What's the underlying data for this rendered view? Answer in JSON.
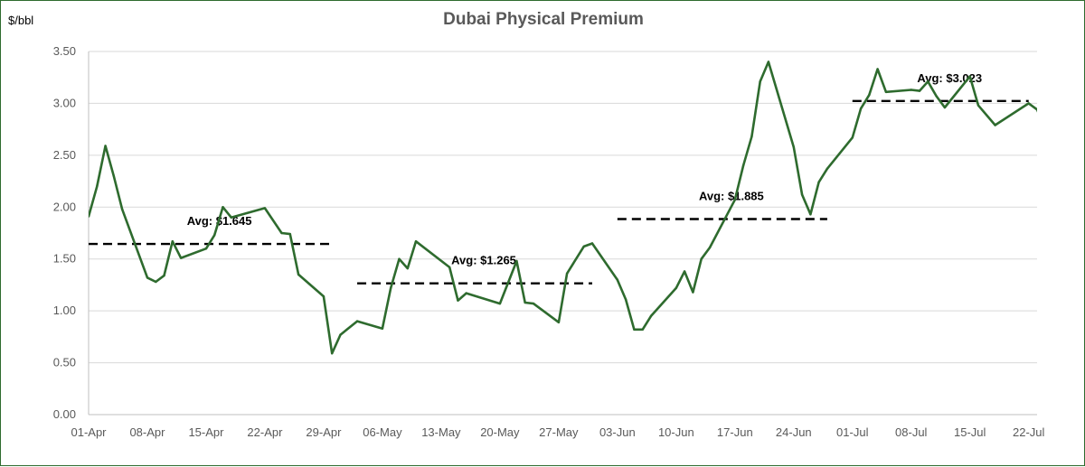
{
  "chart_data": {
    "type": "line",
    "title": "Dubai Physical Premium",
    "y_unit": "$/bbl",
    "ylim": [
      0,
      3.5
    ],
    "y_ticks": [
      "0.00",
      "0.50",
      "1.00",
      "1.50",
      "2.00",
      "2.50",
      "3.00",
      "3.50"
    ],
    "x_range": [
      "2024-04-01",
      "2024-07-23"
    ],
    "x_ticks": [
      {
        "date": "2024-04-01",
        "label": "01-Apr"
      },
      {
        "date": "2024-04-08",
        "label": "08-Apr"
      },
      {
        "date": "2024-04-15",
        "label": "15-Apr"
      },
      {
        "date": "2024-04-22",
        "label": "22-Apr"
      },
      {
        "date": "2024-04-29",
        "label": "29-Apr"
      },
      {
        "date": "2024-05-06",
        "label": "06-May"
      },
      {
        "date": "2024-05-13",
        "label": "13-May"
      },
      {
        "date": "2024-05-20",
        "label": "20-May"
      },
      {
        "date": "2024-05-27",
        "label": "27-May"
      },
      {
        "date": "2024-06-03",
        "label": "03-Jun"
      },
      {
        "date": "2024-06-10",
        "label": "10-Jun"
      },
      {
        "date": "2024-06-17",
        "label": "17-Jun"
      },
      {
        "date": "2024-06-24",
        "label": "24-Jun"
      },
      {
        "date": "2024-07-01",
        "label": "01-Jul"
      },
      {
        "date": "2024-07-08",
        "label": "08-Jul"
      },
      {
        "date": "2024-07-15",
        "label": "15-Jul"
      },
      {
        "date": "2024-07-22",
        "label": "22-Jul"
      }
    ],
    "series": [
      {
        "color": "#2e6b2e",
        "points": [
          [
            "2024-04-01",
            1.91
          ],
          [
            "2024-04-02",
            2.2
          ],
          [
            "2024-04-03",
            2.59
          ],
          [
            "2024-04-04",
            2.3
          ],
          [
            "2024-04-05",
            1.98
          ],
          [
            "2024-04-08",
            1.32
          ],
          [
            "2024-04-09",
            1.28
          ],
          [
            "2024-04-10",
            1.34
          ],
          [
            "2024-04-11",
            1.67
          ],
          [
            "2024-04-12",
            1.51
          ],
          [
            "2024-04-15",
            1.6
          ],
          [
            "2024-04-16",
            1.73
          ],
          [
            "2024-04-17",
            2.0
          ],
          [
            "2024-04-18",
            1.9
          ],
          [
            "2024-04-22",
            1.99
          ],
          [
            "2024-04-24",
            1.75
          ],
          [
            "2024-04-25",
            1.74
          ],
          [
            "2024-04-26",
            1.35
          ],
          [
            "2024-04-29",
            1.14
          ],
          [
            "2024-04-30",
            0.59
          ],
          [
            "2024-05-01",
            0.77
          ],
          [
            "2024-05-03",
            0.9
          ],
          [
            "2024-05-06",
            0.83
          ],
          [
            "2024-05-07",
            1.22
          ],
          [
            "2024-05-08",
            1.5
          ],
          [
            "2024-05-09",
            1.41
          ],
          [
            "2024-05-10",
            1.67
          ],
          [
            "2024-05-14",
            1.42
          ],
          [
            "2024-05-15",
            1.1
          ],
          [
            "2024-05-16",
            1.17
          ],
          [
            "2024-05-20",
            1.07
          ],
          [
            "2024-05-22",
            1.48
          ],
          [
            "2024-05-23",
            1.08
          ],
          [
            "2024-05-24",
            1.07
          ],
          [
            "2024-05-27",
            0.89
          ],
          [
            "2024-05-28",
            1.36
          ],
          [
            "2024-05-30",
            1.62
          ],
          [
            "2024-05-31",
            1.65
          ],
          [
            "2024-06-03",
            1.3
          ],
          [
            "2024-06-04",
            1.11
          ],
          [
            "2024-06-05",
            0.82
          ],
          [
            "2024-06-06",
            0.82
          ],
          [
            "2024-06-07",
            0.95
          ],
          [
            "2024-06-10",
            1.22
          ],
          [
            "2024-06-11",
            1.38
          ],
          [
            "2024-06-12",
            1.18
          ],
          [
            "2024-06-13",
            1.5
          ],
          [
            "2024-06-14",
            1.61
          ],
          [
            "2024-06-17",
            2.07
          ],
          [
            "2024-06-18",
            2.4
          ],
          [
            "2024-06-19",
            2.68
          ],
          [
            "2024-06-20",
            3.21
          ],
          [
            "2024-06-21",
            3.4
          ],
          [
            "2024-06-24",
            2.58
          ],
          [
            "2024-06-25",
            2.12
          ],
          [
            "2024-06-26",
            1.93
          ],
          [
            "2024-06-27",
            2.24
          ],
          [
            "2024-06-28",
            2.37
          ],
          [
            "2024-07-01",
            2.67
          ],
          [
            "2024-07-02",
            2.95
          ],
          [
            "2024-07-03",
            3.08
          ],
          [
            "2024-07-04",
            3.33
          ],
          [
            "2024-07-05",
            3.11
          ],
          [
            "2024-07-08",
            3.13
          ],
          [
            "2024-07-09",
            3.12
          ],
          [
            "2024-07-10",
            3.21
          ],
          [
            "2024-07-11",
            3.07
          ],
          [
            "2024-07-12",
            2.96
          ],
          [
            "2024-07-15",
            3.26
          ],
          [
            "2024-07-16",
            2.98
          ],
          [
            "2024-07-18",
            2.79
          ],
          [
            "2024-07-22",
            3.0
          ],
          [
            "2024-07-23",
            2.94
          ],
          [
            "2024-07-24",
            2.75
          ]
        ]
      }
    ],
    "averages": [
      {
        "label": "Avg: $1.645",
        "value": 1.645,
        "from": "2024-04-01",
        "to": "2024-04-30"
      },
      {
        "label": "Avg: $1.265",
        "value": 1.265,
        "from": "2024-05-03",
        "to": "2024-05-31"
      },
      {
        "label": "Avg: $1.885",
        "value": 1.885,
        "from": "2024-06-03",
        "to": "2024-06-28"
      },
      {
        "label": "Avg: $3.023",
        "value": 3.023,
        "from": "2024-07-01",
        "to": "2024-07-22"
      }
    ],
    "grid": "horizontal",
    "legend": "none"
  }
}
